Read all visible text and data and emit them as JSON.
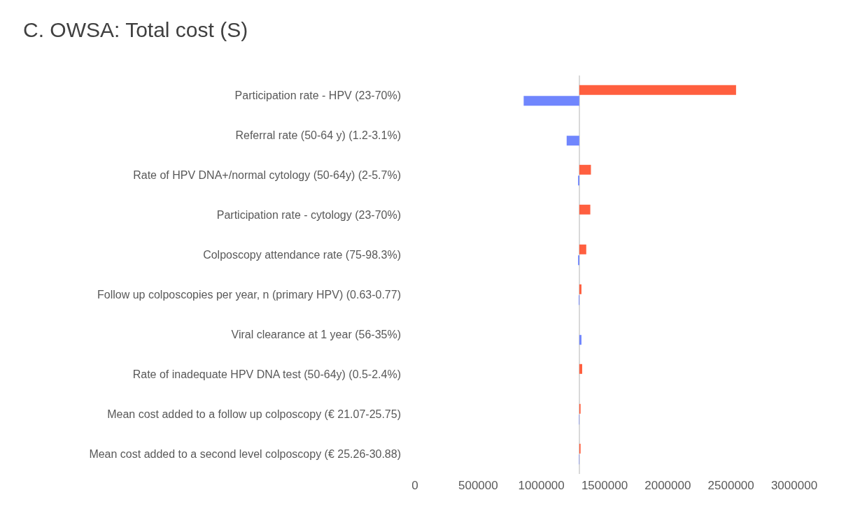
{
  "chart_data": {
    "type": "bar",
    "orientation": "horizontal",
    "title": "C. OWSA: Total cost (S)",
    "categories": [
      "Participation rate - HPV (23-70%)",
      "Referral rate (50-64 y) (1.2-3.1%)",
      "Rate of HPV DNA+/normal cytology (50-64y) (2-5.7%)",
      "Participation rate - cytology (23-70%)",
      "Colposcopy attendance rate (75-98.3%)",
      "Follow up colposcopies per year, n (primary HPV) (0.63-0.77)",
      "Viral clearance at 1 year (56-35%)",
      "Rate of inadequate HPV DNA test (50-64y) (0.5-2.4%)",
      "Mean cost added to a follow up colposcopy (€ 21.07-25.75)",
      "Mean cost added to a second level colposcopy (€ 25.26-30.88)"
    ],
    "series": [
      {
        "color": "#ff5f3f",
        "base": [
          1300000,
          null,
          1300000,
          1300000,
          1300000,
          1300000,
          null,
          1300000,
          1300000,
          1300000
        ],
        "values": [
          1240000,
          null,
          92000,
          87000,
          55000,
          17000,
          null,
          23000,
          10000,
          10000
        ]
      },
      {
        "color": "#7086fd",
        "base": [
          860000,
          1200000,
          1290000,
          null,
          1290000,
          1295000,
          1300000,
          null,
          1297000,
          1297000
        ],
        "values": [
          440000,
          100000,
          10000,
          null,
          10000,
          5000,
          17000,
          null,
          3000,
          3000
        ]
      }
    ],
    "xlim": [
      0,
      3000000
    ],
    "xticks": [
      0,
      500000,
      1000000,
      1500000,
      2000000,
      2500000,
      3000000
    ],
    "ref_lines": [
      {
        "axis": "x",
        "value": 1300000,
        "color": "#d9d9d9"
      }
    ],
    "grid": false
  }
}
